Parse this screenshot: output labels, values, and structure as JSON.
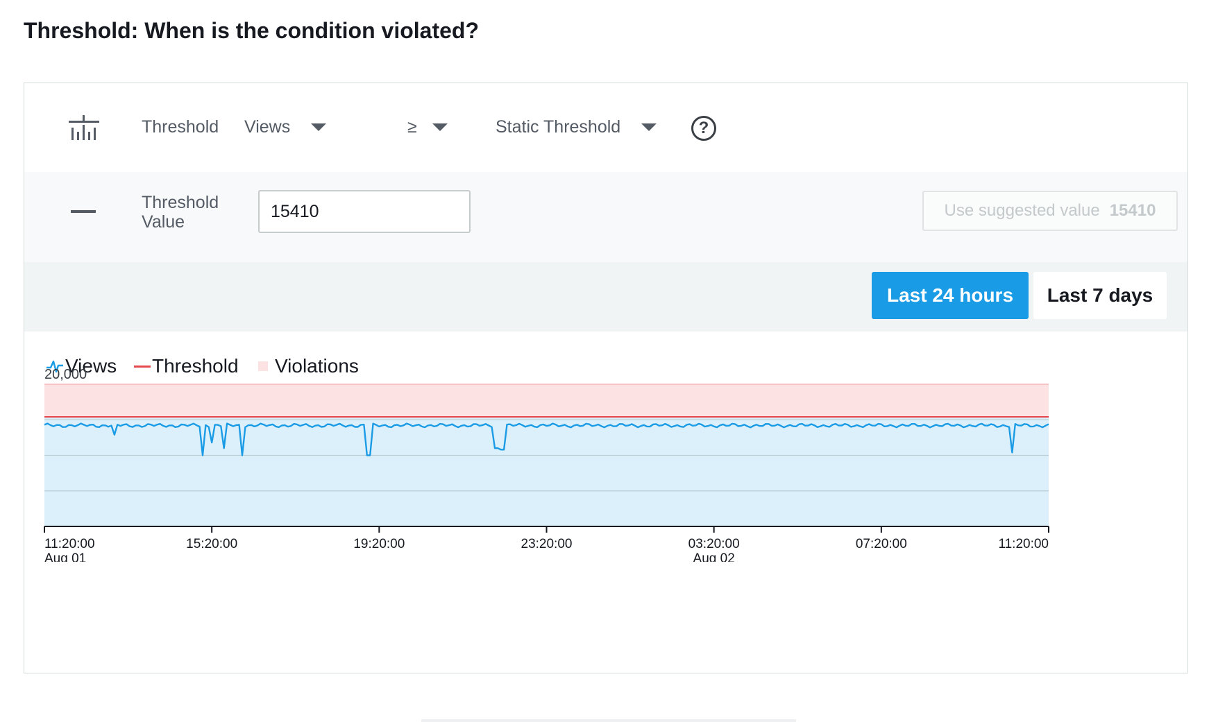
{
  "page": {
    "title": "Threshold: When is the condition violated?"
  },
  "condition_row": {
    "type_label": "Threshold",
    "metric_value": "Views",
    "operator_value": "≥",
    "threshold_type_value": "Static Threshold",
    "icons": {
      "type": "bar-chart-icon",
      "help": "help-icon",
      "caret": "caret-down-icon"
    },
    "help_symbol": "?"
  },
  "threshold_row": {
    "label_line1": "Threshold",
    "label_line2": "Value",
    "input_value": "15410",
    "suggest_label": "Use suggested value",
    "suggest_value": "15410"
  },
  "range": {
    "options": [
      "Last 24 hours",
      "Last 7 days"
    ],
    "selected": "Last 24 hours"
  },
  "legend": {
    "views": "Views",
    "threshold": "Threshold",
    "violations": "Violations"
  },
  "colors": {
    "accent": "#1a9be6",
    "series": "#1a9be6",
    "series_fill": "#dcf0fb",
    "threshold": "#e5484d",
    "violation_fill": "#fde2e4"
  },
  "chart_data": {
    "type": "line",
    "ylabel_top": "20,000",
    "ylim": [
      0,
      20000
    ],
    "threshold": 15410,
    "grid": true,
    "gridlines": [
      5000,
      10000,
      15000
    ],
    "x_ticks": [
      {
        "label": "11:20:00",
        "sub": "Aug 01",
        "t": 0
      },
      {
        "label": "15:20:00",
        "sub": "",
        "t": 4
      },
      {
        "label": "19:20:00",
        "sub": "",
        "t": 8
      },
      {
        "label": "23:20:00",
        "sub": "",
        "t": 12
      },
      {
        "label": "03:20:00",
        "sub": "Aug 02",
        "t": 16
      },
      {
        "label": "07:20:00",
        "sub": "",
        "t": 20
      },
      {
        "label": "11:20:00",
        "sub": "",
        "t": 24
      }
    ],
    "series": [
      {
        "name": "Views",
        "baseline": 14200,
        "dips": [
          {
            "t": 1.7,
            "value": 12900
          },
          {
            "t": 3.8,
            "value": 10000
          },
          {
            "t": 4.0,
            "value": 11800
          },
          {
            "t": 4.3,
            "value": 11000
          },
          {
            "t": 4.7,
            "value": 10000
          },
          {
            "t": 7.75,
            "value": 10000
          },
          {
            "t": 10.8,
            "value": 11000
          },
          {
            "t": 10.95,
            "value": 10800
          },
          {
            "t": 23.1,
            "value": 10400
          }
        ]
      }
    ]
  }
}
